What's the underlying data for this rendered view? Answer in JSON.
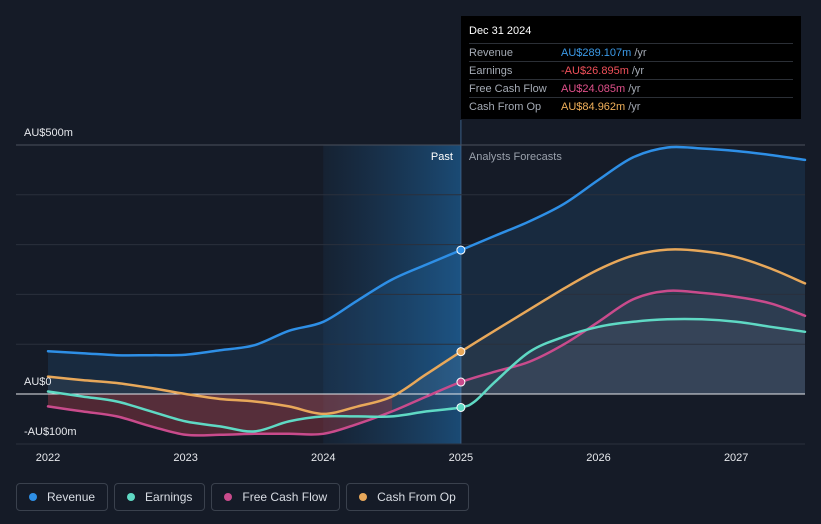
{
  "tooltip": {
    "date": "Dec 31 2024",
    "rows": [
      {
        "label": "Revenue",
        "value": "AU$289.107m",
        "unit": "/yr",
        "color": "#3b9ae8"
      },
      {
        "label": "Earnings",
        "value": "-AU$26.895m",
        "unit": "/yr",
        "color": "#f0505a"
      },
      {
        "label": "Free Cash Flow",
        "value": "AU$24.085m",
        "unit": "/yr",
        "color": "#e0508a"
      },
      {
        "label": "Cash From Op",
        "value": "AU$84.962m",
        "unit": "/yr",
        "color": "#f0b05a"
      }
    ]
  },
  "legend": [
    {
      "label": "Revenue",
      "color": "#2e8fe6"
    },
    {
      "label": "Earnings",
      "color": "#5fd9c4"
    },
    {
      "label": "Free Cash Flow",
      "color": "#c94b8c"
    },
    {
      "label": "Cash From Op",
      "color": "#e8a85a"
    }
  ],
  "chart_data": {
    "type": "line",
    "title": "",
    "xlabel": "",
    "ylabel": "",
    "ylim": [
      -100,
      500
    ],
    "y_tick_labels": [
      "AU$500m",
      "AU$0",
      "-AU$100m"
    ],
    "x_tick_labels": [
      "2022",
      "2023",
      "2024",
      "2025",
      "2026",
      "2027"
    ],
    "xlim": [
      2022.0,
      2027.5
    ],
    "past_label": "Past",
    "forecast_label": "Analysts Forecasts",
    "past_end": 2025.0,
    "highlight_start": 2024.0,
    "series": [
      {
        "name": "Revenue",
        "color": "#2e8fe6",
        "x": [
          2022.0,
          2022.25,
          2022.5,
          2022.75,
          2023.0,
          2023.25,
          2023.5,
          2023.75,
          2024.0,
          2024.25,
          2024.5,
          2024.75,
          2025.0,
          2025.25,
          2025.5,
          2025.75,
          2026.0,
          2026.25,
          2026.5,
          2026.75,
          2027.0,
          2027.25,
          2027.5
        ],
        "values": [
          86,
          82,
          78,
          78,
          79,
          88,
          98,
          127,
          145,
          188,
          230,
          260,
          289,
          318,
          347,
          382,
          430,
          475,
          495,
          493,
          488,
          480,
          470
        ]
      },
      {
        "name": "Earnings",
        "color": "#5fd9c4",
        "x": [
          2022.0,
          2022.25,
          2022.5,
          2022.75,
          2023.0,
          2023.25,
          2023.5,
          2023.75,
          2024.0,
          2024.25,
          2024.5,
          2024.75,
          2025.0,
          2025.1,
          2025.25,
          2025.5,
          2025.75,
          2026.0,
          2026.25,
          2026.5,
          2026.75,
          2027.0,
          2027.25,
          2027.5
        ],
        "values": [
          5,
          -5,
          -15,
          -35,
          -55,
          -65,
          -75,
          -55,
          -45,
          -45,
          -45,
          -35,
          -27,
          -15,
          25,
          85,
          115,
          135,
          145,
          150,
          150,
          145,
          135,
          125
        ]
      },
      {
        "name": "Free Cash Flow",
        "color": "#c94b8c",
        "x": [
          2022.0,
          2022.25,
          2022.5,
          2022.75,
          2023.0,
          2023.25,
          2023.5,
          2023.75,
          2024.0,
          2024.25,
          2024.5,
          2024.75,
          2025.0,
          2025.25,
          2025.5,
          2025.75,
          2026.0,
          2026.25,
          2026.5,
          2026.75,
          2027.0,
          2027.25,
          2027.5
        ],
        "values": [
          -25,
          -35,
          -45,
          -65,
          -82,
          -82,
          -80,
          -80,
          -80,
          -60,
          -35,
          -5,
          24,
          45,
          65,
          100,
          145,
          190,
          207,
          203,
          195,
          182,
          157
        ]
      },
      {
        "name": "Cash From Op",
        "color": "#e8a85a",
        "x": [
          2022.0,
          2022.25,
          2022.5,
          2022.75,
          2023.0,
          2023.25,
          2023.5,
          2023.75,
          2024.0,
          2024.25,
          2024.5,
          2024.75,
          2025.0,
          2025.25,
          2025.5,
          2025.75,
          2026.0,
          2026.25,
          2026.5,
          2026.75,
          2027.0,
          2027.25,
          2027.5
        ],
        "values": [
          35,
          28,
          22,
          12,
          0,
          -10,
          -15,
          -25,
          -40,
          -25,
          -5,
          40,
          85,
          128,
          170,
          212,
          250,
          278,
          290,
          287,
          275,
          252,
          222
        ]
      }
    ]
  }
}
